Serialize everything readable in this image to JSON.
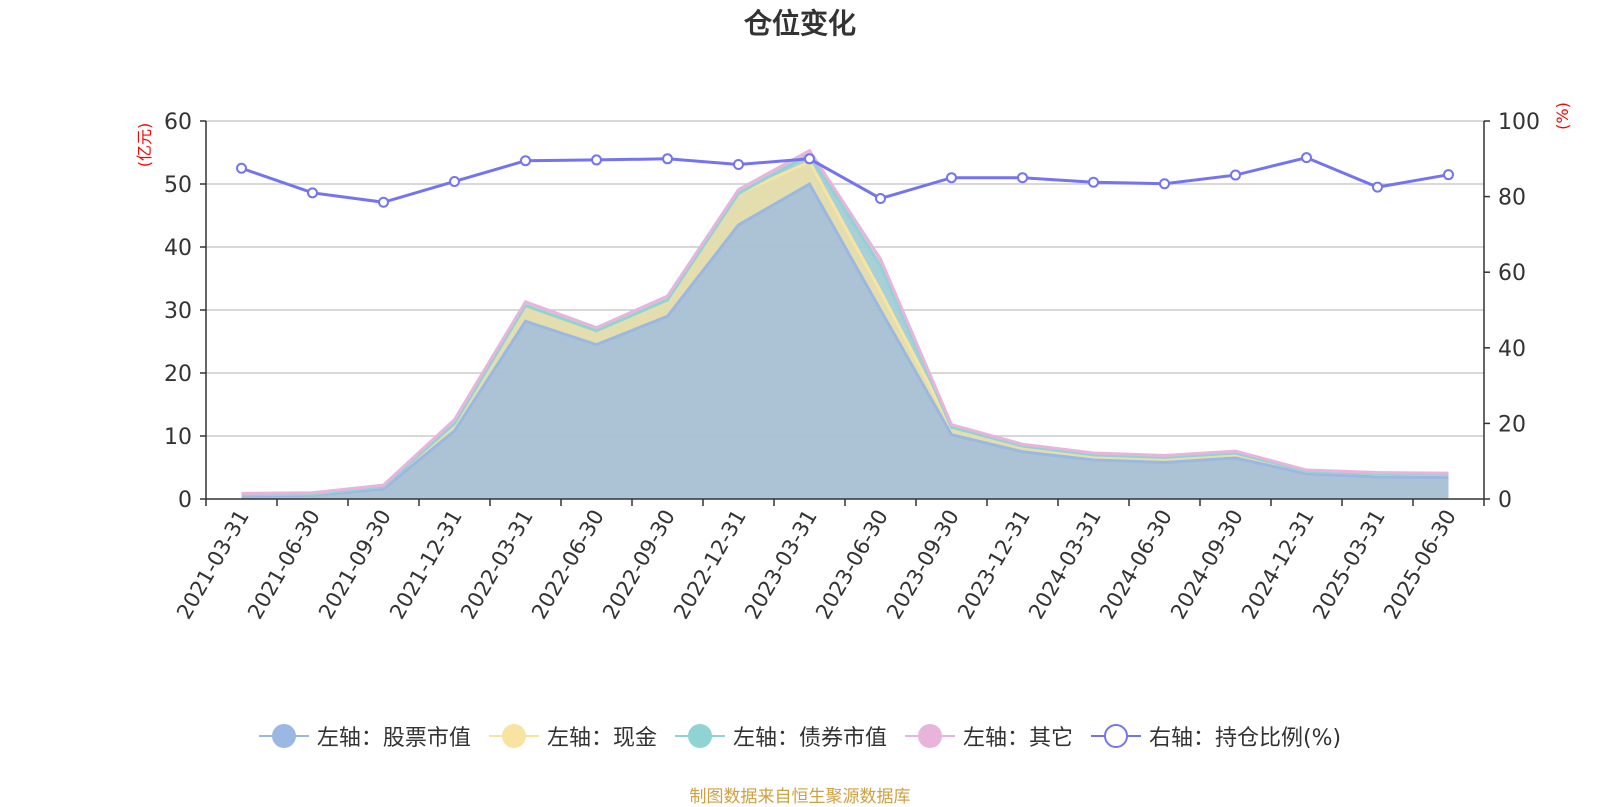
{
  "title": "仓位变化",
  "source": "制图数据来自恒生聚源数据库",
  "colors": {
    "stock": "#9ab8e2",
    "cash": "#f8e3a0",
    "bond": "#8fd3d3",
    "other": "#e8b4dc",
    "ratio": "#7474f0"
  },
  "chart_data": {
    "type": "area",
    "categories": [
      "2021-03-31",
      "2021-06-30",
      "2021-09-30",
      "2021-12-31",
      "2022-03-31",
      "2022-06-30",
      "2022-09-30",
      "2022-12-31",
      "2023-03-31",
      "2023-06-30",
      "2023-09-30",
      "2023-12-31",
      "2024-03-31",
      "2024-06-30",
      "2024-09-30",
      "2024-12-31",
      "2025-03-31",
      "2025-06-30"
    ],
    "left_axis": {
      "label": "(亿元)",
      "min": 0,
      "max": 60,
      "ticks": [
        "0",
        "10",
        "20",
        "30",
        "40",
        "50",
        "60"
      ]
    },
    "right_axis": {
      "label": "(%)",
      "min": 0,
      "max": 100,
      "ticks": [
        "0",
        "20",
        "40",
        "60",
        "80",
        "100"
      ]
    },
    "stacked_series": [
      {
        "name": "左轴：股票市值",
        "color_key": "stock",
        "values": [
          0.5,
          0.6,
          1.6,
          10.8,
          28.2,
          24.5,
          29.0,
          43.5,
          50.0,
          30.0,
          10.2,
          7.5,
          6.2,
          5.8,
          6.5,
          4.0,
          3.5,
          3.4
        ]
      },
      {
        "name": "左轴：现金",
        "color_key": "cash",
        "values": [
          0.2,
          0.2,
          0.4,
          1.2,
          2.5,
          2.2,
          2.6,
          5.0,
          3.5,
          3.0,
          1.2,
          0.9,
          0.8,
          0.8,
          0.8,
          0.4,
          0.5,
          0.5
        ]
      },
      {
        "name": "左轴：债券市值",
        "color_key": "bond",
        "values": [
          0,
          0,
          0,
          0,
          0,
          0,
          0,
          0,
          1.2,
          4.0,
          0,
          0,
          0,
          0,
          0,
          0,
          0,
          0
        ]
      },
      {
        "name": "左轴：其它",
        "color_key": "other",
        "values": [
          0.2,
          0.2,
          0.2,
          0.6,
          0.6,
          0.5,
          0.6,
          0.6,
          0.6,
          1.1,
          0.4,
          0.3,
          0.3,
          0.3,
          0.3,
          0.2,
          0.2,
          0.2
        ]
      }
    ],
    "line_series": {
      "name": "右轴：持仓比例(%)",
      "color_key": "ratio",
      "values": [
        87.5,
        81.0,
        78.5,
        84.0,
        89.5,
        89.7,
        90.0,
        88.5,
        90.0,
        79.5,
        85.0,
        85.0,
        83.8,
        83.4,
        85.7,
        90.3,
        82.5,
        85.8
      ]
    },
    "grid": true,
    "legend_position": "bottom"
  }
}
